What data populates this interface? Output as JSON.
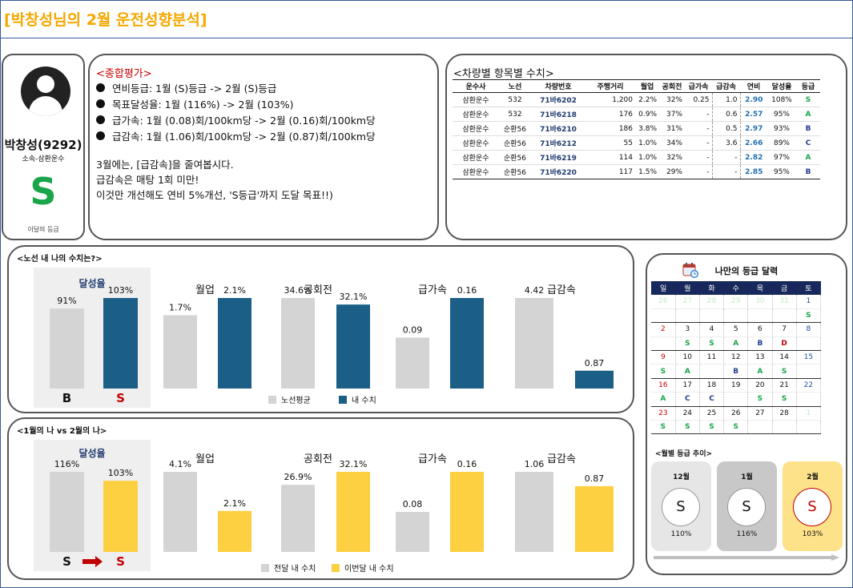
{
  "report": {
    "title": "[박창성님의 2월 운전성향분석]"
  },
  "profile": {
    "name": "박창성(9292)",
    "affiliation": "소속-삼환운수",
    "grade": "S",
    "grade_label": "이달의 등급",
    "grade_color": "#1aa54a"
  },
  "summary": {
    "title": "<종합평가>",
    "bullets": [
      "연비등급: 1월 (S)등급 -> 2월 (S)등급",
      "목표달성율: 1월 (116%) -> 2월 (103%)",
      "급가속: 1월 (0.08)회/100km당 -> 2월 (0.16)회/100km당",
      "급감속: 1월 (1.06)회/100km당   -> 2월 (0.87)회/100km당"
    ],
    "advice": [
      "3월에는, [급감속]을 줄여봅시다.",
      "급감속은 매탕 1회 미만!",
      "이것만 개선해도 연비 5%개선, 'S등급'까지 도달 목표!!)"
    ]
  },
  "vehicles": {
    "title": "<차량별 항목별 수치>",
    "headers": [
      "운수사",
      "노선",
      "차량번호",
      "주행거리",
      "월업",
      "공회전",
      "급가속",
      "급감속",
      "연비",
      "달성율",
      "등급"
    ],
    "rows": [
      [
        "삼환운수",
        "532",
        "71바6202",
        "1,200",
        "2.2%",
        "32%",
        "0.25",
        "1.0",
        "2.90",
        "108%",
        "S"
      ],
      [
        "삼환운수",
        "532",
        "71바6218",
        "176",
        "0.9%",
        "37%",
        "-",
        "0.6",
        "2.57",
        "95%",
        "A"
      ],
      [
        "삼환운수",
        "순환56",
        "71바6210",
        "186",
        "3.8%",
        "31%",
        "-",
        "0.5",
        "2.97",
        "93%",
        "B"
      ],
      [
        "삼환운수",
        "순환56",
        "71바6212",
        "55",
        "1.0%",
        "34%",
        "-",
        "3.6",
        "2.66",
        "89%",
        "C"
      ],
      [
        "삼환운수",
        "순환56",
        "71바6219",
        "114",
        "1.0%",
        "32%",
        "-",
        "-",
        "2.82",
        "97%",
        "A"
      ],
      [
        "삼환운수",
        "순환56",
        "71바6220",
        "117",
        "1.5%",
        "29%",
        "-",
        "-",
        "2.85",
        "95%",
        "B"
      ]
    ],
    "grade_colors": {
      "S": "#1aa54a",
      "A": "#1aa54a",
      "B": "#1f3b8e",
      "C": "#1f3b8e"
    }
  },
  "route_compare": {
    "title": "<노선 내 나의 수치는?>",
    "legend": [
      "노선평균",
      "내 수치"
    ],
    "colors": {
      "avg": "#d4d4d4",
      "mine": "#1b5e86",
      "panel": "#efefef"
    }
  },
  "month_compare": {
    "title": "<1월의 나 vs 2월의 나>",
    "legend": [
      "전달 내 수치",
      "이번달 내 수치"
    ],
    "colors": {
      "prev": "#d4d4d4",
      "cur": "#fcd041",
      "panel": "#efefef",
      "arrow": "#c00000"
    }
  },
  "chart_data": [
    {
      "type": "bar",
      "title": "<노선 내 나의 수치는?>",
      "series_names": [
        "노선평균",
        "내 수치"
      ],
      "panels": [
        {
          "label": "달성율",
          "values": [
            91,
            103
          ],
          "value_labels": [
            "91%",
            "103%"
          ],
          "grades": [
            "B",
            "S"
          ]
        },
        {
          "label": "월업",
          "values": [
            1.7,
            2.1
          ],
          "value_labels": [
            "1.7%",
            "2.1%"
          ]
        },
        {
          "label": "공회전",
          "values": [
            34.6,
            32.1
          ],
          "value_labels": [
            "34.6%",
            "32.1%"
          ]
        },
        {
          "label": "급가속",
          "values": [
            0.09,
            0.16
          ],
          "value_labels": [
            "0.09",
            "0.16"
          ]
        },
        {
          "label": "급감속",
          "values": [
            4.42,
            0.87
          ],
          "value_labels": [
            "4.42",
            "0.87"
          ]
        }
      ]
    },
    {
      "type": "bar",
      "title": "<1월의 나 vs 2월의 나>",
      "series_names": [
        "전달 내 수치",
        "이번달 내 수치"
      ],
      "panels": [
        {
          "label": "달성율",
          "values": [
            116,
            103
          ],
          "value_labels": [
            "116%",
            "103%"
          ],
          "grades": [
            "S",
            "S"
          ]
        },
        {
          "label": "월업",
          "values": [
            4.1,
            2.1
          ],
          "value_labels": [
            "4.1%",
            "2.1%"
          ]
        },
        {
          "label": "공회전",
          "values": [
            26.9,
            32.1
          ],
          "value_labels": [
            "26.9%",
            "32.1%"
          ]
        },
        {
          "label": "급가속",
          "values": [
            0.08,
            0.16
          ],
          "value_labels": [
            "0.08",
            "0.16"
          ]
        },
        {
          "label": "급감속",
          "values": [
            1.06,
            0.87
          ],
          "value_labels": [
            "1.06",
            "0.87"
          ]
        }
      ]
    }
  ],
  "calendar": {
    "title": "나만의 등급 달력",
    "weekdays": [
      "일",
      "월",
      "화",
      "수",
      "목",
      "금",
      "토"
    ],
    "weeks": [
      {
        "days": [
          "26",
          "27",
          "28",
          "29",
          "30",
          "31",
          "1"
        ],
        "grades": [
          "",
          "",
          "",
          "",
          "",
          "",
          "S"
        ]
      },
      {
        "days": [
          "2",
          "3",
          "4",
          "5",
          "6",
          "7",
          "8"
        ],
        "grades": [
          "",
          "S",
          "S",
          "A",
          "B",
          "D",
          ""
        ]
      },
      {
        "days": [
          "9",
          "10",
          "11",
          "12",
          "13",
          "14",
          "15"
        ],
        "grades": [
          "S",
          "A",
          "",
          "B",
          "A",
          "S",
          ""
        ]
      },
      {
        "days": [
          "16",
          "17",
          "18",
          "19",
          "20",
          "21",
          "22"
        ],
        "grades": [
          "A",
          "C",
          "C",
          "",
          "S",
          "S",
          ""
        ]
      },
      {
        "days": [
          "23",
          "24",
          "25",
          "26",
          "27",
          "28",
          "1"
        ],
        "grades": [
          "S",
          "S",
          "S",
          "S",
          "",
          "",
          ""
        ]
      }
    ],
    "muted_days": [
      [
        0,
        0
      ],
      [
        0,
        1
      ],
      [
        0,
        2
      ],
      [
        0,
        3
      ],
      [
        0,
        4
      ],
      [
        0,
        5
      ],
      [
        4,
        6
      ]
    ],
    "red_days": [
      [
        1,
        0
      ],
      [
        2,
        0
      ],
      [
        3,
        0
      ],
      [
        4,
        0
      ]
    ],
    "blue_days": [
      [
        0,
        6
      ],
      [
        1,
        6
      ],
      [
        2,
        6
      ],
      [
        3,
        6
      ]
    ],
    "grade_colors": {
      "S": "#1aa54a",
      "A": "#1aa54a",
      "B": "#1f3b8e",
      "C": "#1f3b8e",
      "D": "#c00000"
    }
  },
  "trend": {
    "title": "<월별 등급 추이>",
    "months": [
      {
        "label": "12월",
        "grade": "S",
        "pct": "110%",
        "bg": "#e6e6e6"
      },
      {
        "label": "1월",
        "grade": "S",
        "pct": "116%",
        "bg": "#c8c8c8"
      },
      {
        "label": "2월",
        "grade": "S",
        "pct": "103%",
        "bg": "#fde28a"
      }
    ]
  }
}
